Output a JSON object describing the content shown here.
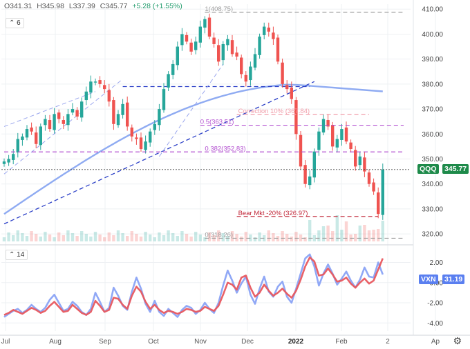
{
  "ohlc": {
    "open": "O341.31",
    "high": "H345.98",
    "low": "L337.39",
    "close": "C345.77",
    "change": "+5.28 (+1.55%)"
  },
  "panels": {
    "main_tag": "6",
    "vxn_tag": "14"
  },
  "labels": {
    "qqq": "QQQ",
    "qqq_value": "345.77",
    "vxn": "VXN",
    "vxn_value": "31.19"
  },
  "colors": {
    "up": "#26a69a",
    "down": "#ef5350",
    "ma": "#7b9cf0",
    "trend": "#2b3fc7",
    "fib": "#b24fd0",
    "correction": "#f19ca8",
    "bear": "#c2283a",
    "vxn": "#8aa3f5",
    "vq": "#e8595f"
  },
  "chart_data": [
    {
      "type": "candlestick",
      "x_ticks": [
        "Jul",
        "Aug",
        "Sep",
        "Oct",
        "Nov",
        "Dec",
        "2022",
        "Feb",
        "2",
        "Ap"
      ],
      "y_ticks": [
        320,
        330,
        340,
        350,
        360,
        370,
        380,
        390,
        400,
        410
      ],
      "ylim": [
        317,
        412
      ],
      "series": [
        {
          "name": "QQQ",
          "close_points": [
            [
              0,
              349
            ],
            [
              1,
              350
            ],
            [
              2,
              352
            ],
            [
              3,
              358
            ],
            [
              4,
              359
            ],
            [
              5,
              362
            ],
            [
              6,
              361
            ],
            [
              7,
              356
            ],
            [
              8,
              363
            ],
            [
              9,
              366
            ],
            [
              10,
              362
            ],
            [
              11,
              368
            ],
            [
              12,
              366
            ],
            [
              13,
              364
            ],
            [
              14,
              368
            ],
            [
              15,
              370
            ],
            [
              16,
              367
            ],
            [
              17,
              373
            ],
            [
              18,
              377
            ],
            [
              19,
              381
            ],
            [
              20,
              381
            ],
            [
              21,
              380
            ],
            [
              22,
              378
            ],
            [
              23,
              373
            ],
            [
              24,
              364
            ],
            [
              25,
              368
            ],
            [
              26,
              372
            ],
            [
              27,
              363
            ],
            [
              28,
              359
            ],
            [
              29,
              358
            ],
            [
              30,
              354
            ],
            [
              31,
              357
            ],
            [
              32,
              361
            ],
            [
              33,
              364
            ],
            [
              34,
              370
            ],
            [
              35,
              378
            ],
            [
              36,
              384
            ],
            [
              37,
              388
            ],
            [
              38,
              395
            ],
            [
              39,
              400
            ],
            [
              40,
              397
            ],
            [
              41,
              393
            ],
            [
              42,
              397
            ],
            [
              43,
              403
            ],
            [
              44,
              406
            ],
            [
              45,
              399
            ],
            [
              46,
              396
            ],
            [
              47,
              389
            ],
            [
              48,
              396
            ],
            [
              49,
              398
            ],
            [
              50,
              392
            ],
            [
              51,
              391
            ],
            [
              52,
              384
            ],
            [
              53,
              381
            ],
            [
              54,
              387
            ],
            [
              55,
              392
            ],
            [
              56,
              399
            ],
            [
              57,
              403
            ],
            [
              58,
              401
            ],
            [
              59,
              398
            ],
            [
              60,
              389
            ],
            [
              61,
              380
            ],
            [
              62,
              378
            ],
            [
              63,
              374
            ],
            [
              64,
              360
            ],
            [
              65,
              347
            ],
            [
              66,
              340
            ],
            [
              67,
              343
            ],
            [
              68,
              353
            ],
            [
              69,
              361
            ],
            [
              70,
              366
            ],
            [
              71,
              363
            ],
            [
              72,
              355
            ],
            [
              73,
              358
            ],
            [
              74,
              362
            ],
            [
              75,
              357
            ],
            [
              76,
              354
            ],
            [
              77,
              347
            ],
            [
              78,
              351
            ],
            [
              79,
              345
            ],
            [
              80,
              340
            ],
            [
              81,
              337
            ],
            [
              82,
              328
            ],
            [
              83,
              345.77
            ]
          ]
        }
      ],
      "indicators": [
        {
          "name": "",
          "type": "moving-average"
        },
        {
          "name": "",
          "type": "trendline"
        }
      ],
      "levels": [
        {
          "label": "1(408.75)",
          "value": 408.75
        },
        {
          "label": "Correction 10% (367.84)",
          "value": 367.84
        },
        {
          "label": "0.5(363.51)",
          "value": 363.51
        },
        {
          "label": "0.382(352.83)",
          "value": 352.83
        },
        {
          "label": "Bear Mkt -20% (326.97)",
          "value": 326.97
        },
        {
          "label": "0(318.26)",
          "value": 318.26
        }
      ],
      "current": {
        "label": "QQQ",
        "value": 345.77
      }
    },
    {
      "type": "line",
      "y_ticks": [
        "2.00",
        "0.00",
        "-2.00",
        "-4.00"
      ],
      "ylim": [
        -4.8,
        3.4
      ],
      "series": [
        {
          "name": "VXN",
          "values": [
            -3.4,
            -3.1,
            -2.8,
            -2.6,
            -3.0,
            -2.7,
            -2.2,
            -2.6,
            -2.9,
            -2.5,
            -1.7,
            -1.2,
            -2.0,
            -2.8,
            -2.6,
            -1.9,
            -2.3,
            -2.9,
            -3.2,
            -2.6,
            -1.0,
            -1.9,
            -2.9,
            -2.5,
            -0.5,
            -1.3,
            -2.3,
            -2.7,
            -0.9,
            0.5,
            -0.6,
            -2.1,
            -2.9,
            -1.8,
            -2.9,
            -3.3,
            -2.6,
            -3.0,
            -3.4,
            -2.7,
            -2.3,
            -2.5,
            -3.1,
            -2.7,
            -2.0,
            -2.6,
            -3.0,
            -2.0,
            -0.3,
            1.2,
            0.2,
            -1.0,
            -0.1,
            0.6,
            -1.2,
            -2.1,
            -0.6,
            0.6,
            -0.9,
            -1.4,
            -0.4,
            0.1,
            -1.4,
            -2.0,
            -0.6,
            0.9,
            2.4,
            2.8,
            1.6,
            -0.3,
            0.9,
            1.8,
            0.9,
            -0.2,
            0.4,
            1.1,
            0.2,
            -0.5,
            0.3,
            1.5,
            0.6,
            0.5,
            2.0,
            0.8
          ]
        },
        {
          "name": "VQ",
          "values": [
            -3.2,
            -3.0,
            -2.7,
            -2.9,
            -3.1,
            -2.8,
            -2.5,
            -2.7,
            -3.0,
            -2.8,
            -2.3,
            -1.9,
            -2.4,
            -2.9,
            -2.8,
            -2.2,
            -2.6,
            -3.0,
            -3.2,
            -2.9,
            -1.8,
            -2.3,
            -2.9,
            -2.7,
            -1.5,
            -1.6,
            -2.2,
            -2.6,
            -1.3,
            -0.4,
            -0.9,
            -1.9,
            -2.6,
            -2.2,
            -2.7,
            -3.0,
            -2.8,
            -2.9,
            -3.1,
            -2.9,
            -2.6,
            -2.7,
            -2.9,
            -2.8,
            -2.4,
            -2.6,
            -2.8,
            -2.3,
            -1.2,
            0.0,
            -0.2,
            -0.7,
            0.5,
            0.7,
            -0.5,
            -1.4,
            -1.0,
            -0.2,
            -0.8,
            -1.3,
            -1.0,
            -0.6,
            -1.1,
            -1.5,
            -0.8,
            0.3,
            1.6,
            2.5,
            2.1,
            0.7,
            0.8,
            1.4,
            0.8,
            0.1,
            0.2,
            0.5,
            -0.1,
            -0.5,
            0.0,
            0.4,
            -0.1,
            0.2,
            1.3,
            2.4
          ]
        }
      ]
    }
  ]
}
